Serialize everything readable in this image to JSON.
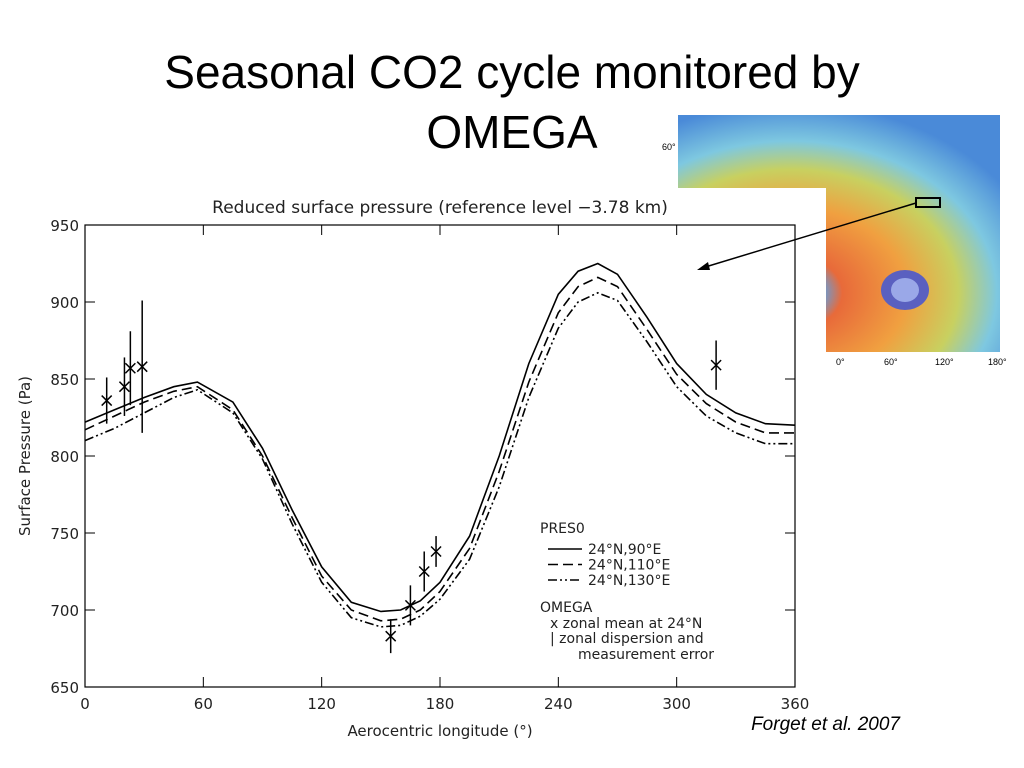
{
  "slide": {
    "title_lines": [
      "Seasonal CO2 cycle monitored by",
      "OMEGA"
    ],
    "citation": "Forget et al. 2007",
    "map_labels": [
      "60°",
      "0°",
      "60°",
      "120°",
      "180°"
    ]
  },
  "chart_data": {
    "type": "line",
    "title": "Reduced surface pressure (reference level −3.78 km)",
    "x_label": "Aerocentric longitude (°)",
    "y_label": "Surface Pressure (Pa)",
    "xlim": [
      0,
      360
    ],
    "ylim": [
      650,
      950
    ],
    "xticks": [
      0,
      60,
      120,
      180,
      240,
      300,
      360
    ],
    "yticks": [
      650,
      700,
      750,
      800,
      850,
      900,
      950
    ],
    "x": [
      0,
      15,
      30,
      45,
      57,
      75,
      90,
      105,
      120,
      135,
      150,
      160,
      170,
      180,
      195,
      210,
      225,
      240,
      250,
      260,
      270,
      285,
      300,
      315,
      330,
      345,
      360
    ],
    "legend_title": "PRES0",
    "series": [
      {
        "name": "24°N,90°E",
        "color": "#000000",
        "dash": "solid",
        "values": [
          822,
          830,
          838,
          845,
          848,
          835,
          805,
          765,
          728,
          705,
          699,
          700,
          706,
          718,
          748,
          800,
          860,
          905,
          920,
          925,
          918,
          890,
          860,
          840,
          828,
          821,
          820
        ]
      },
      {
        "name": "24°N,110°E",
        "color": "#000000",
        "dash": "dashed",
        "values": [
          817,
          826,
          835,
          842,
          845,
          830,
          800,
          760,
          722,
          700,
          693,
          694,
          700,
          712,
          740,
          790,
          848,
          893,
          910,
          916,
          910,
          882,
          853,
          834,
          822,
          815,
          815
        ]
      },
      {
        "name": "24°N,130°E",
        "color": "#000000",
        "dash": "dashdotdot",
        "values": [
          810,
          818,
          828,
          838,
          843,
          828,
          798,
          756,
          718,
          695,
          689,
          690,
          696,
          707,
          733,
          780,
          838,
          883,
          900,
          906,
          901,
          874,
          845,
          826,
          815,
          808,
          808
        ]
      }
    ],
    "omega": {
      "legend_title": "OMEGA",
      "legend_lines": [
        "x zonal mean at 24°N",
        "| zonal dispersion and",
        "measurement error"
      ],
      "x": [
        11,
        20,
        23,
        29,
        155,
        165,
        172,
        178,
        320
      ],
      "values": [
        836,
        845,
        857,
        858,
        683,
        703,
        725,
        738,
        859
      ],
      "errors": [
        15,
        19,
        24,
        43,
        11,
        13,
        13,
        10,
        16
      ]
    }
  }
}
